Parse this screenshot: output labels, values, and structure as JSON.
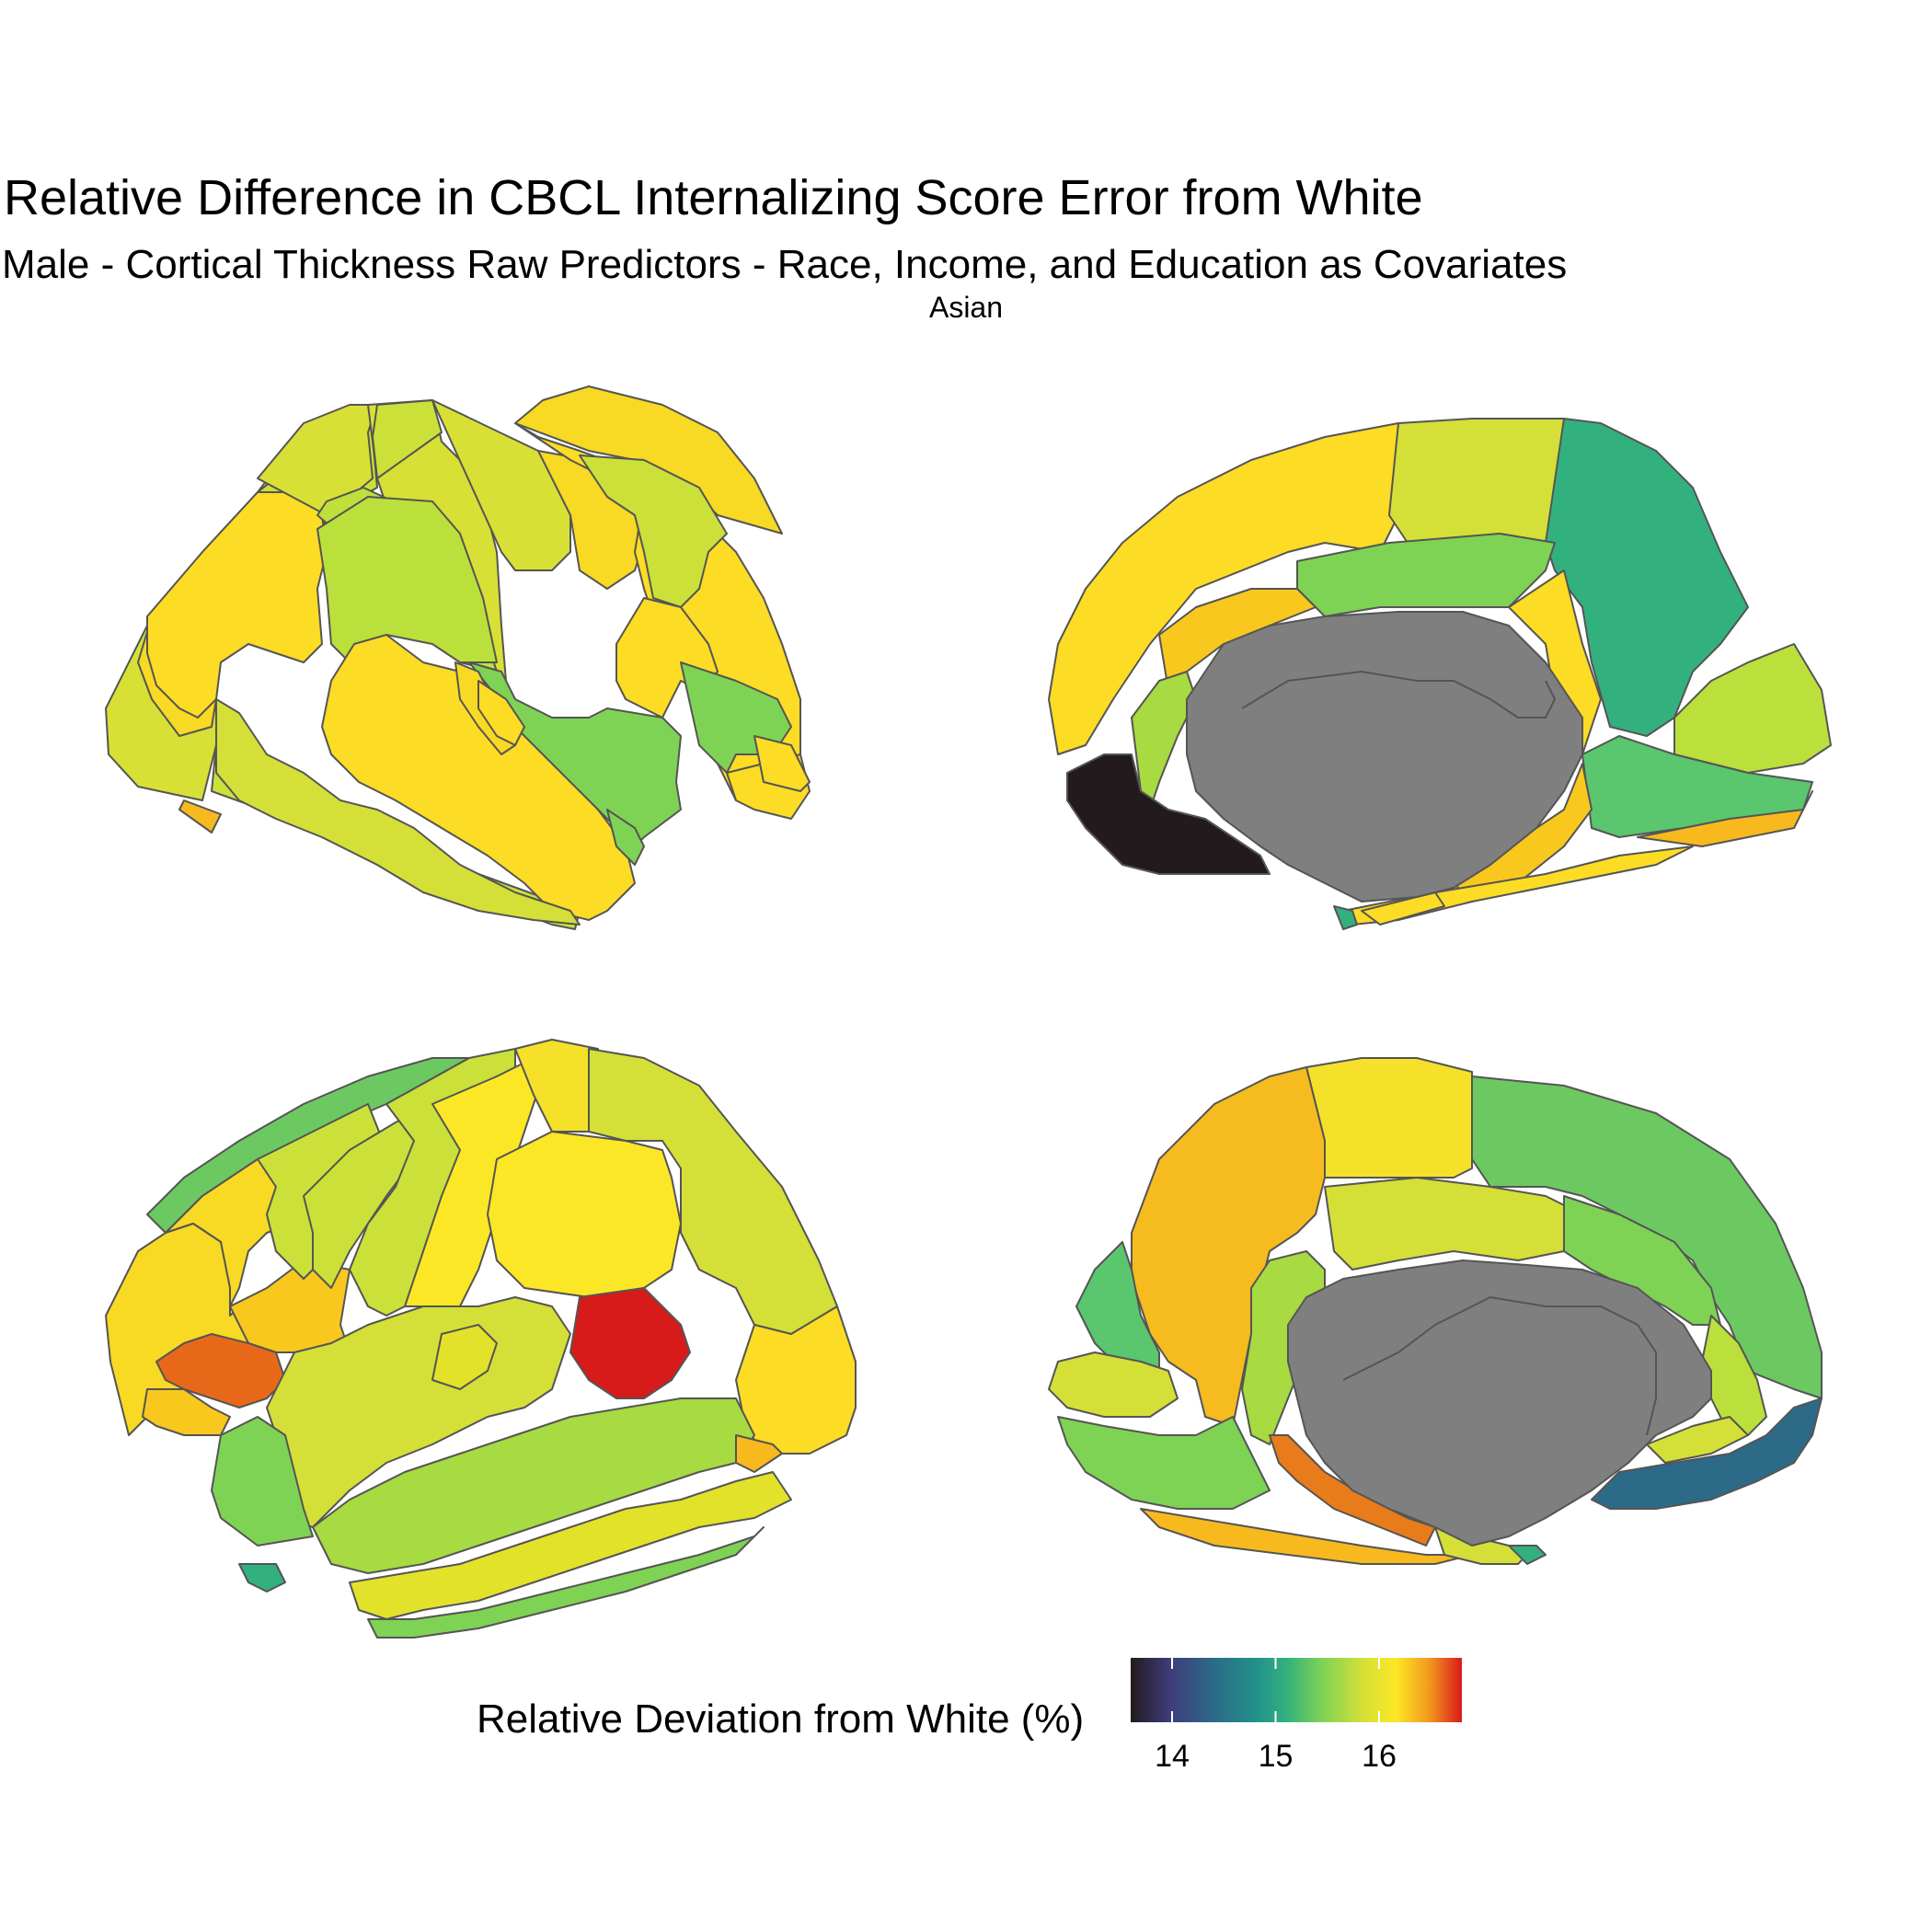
{
  "chart_data": {
    "type": "heatmap",
    "title": "Relative Difference in CBCL Internalizing Score Error from White",
    "subtitle": "Male - Cortical Thickness Raw Predictors - Race, Income, and Education as Covariates",
    "facet_label": "Asian",
    "legend": {
      "title": "Relative Deviation from White (%)",
      "placement": "bottom",
      "scale": "viridis-turbo",
      "range": [
        13.6,
        16.8
      ],
      "ticks": [
        14,
        15,
        16
      ],
      "tick_labels": [
        "14",
        "15",
        "16"
      ]
    },
    "views": [
      "left lateral",
      "left medial",
      "right lateral",
      "right medial"
    ],
    "missing_region_color": "#7f7f7f"
  },
  "colors": {
    "outline": "#555555",
    "medial_wall": "#7f7f7f",
    "black_region": "#231a1d",
    "red_region": "#d71a1a",
    "orange_region": "#e8681a",
    "teal_region": "#32b17e",
    "blue_region": "#2c6a87"
  }
}
